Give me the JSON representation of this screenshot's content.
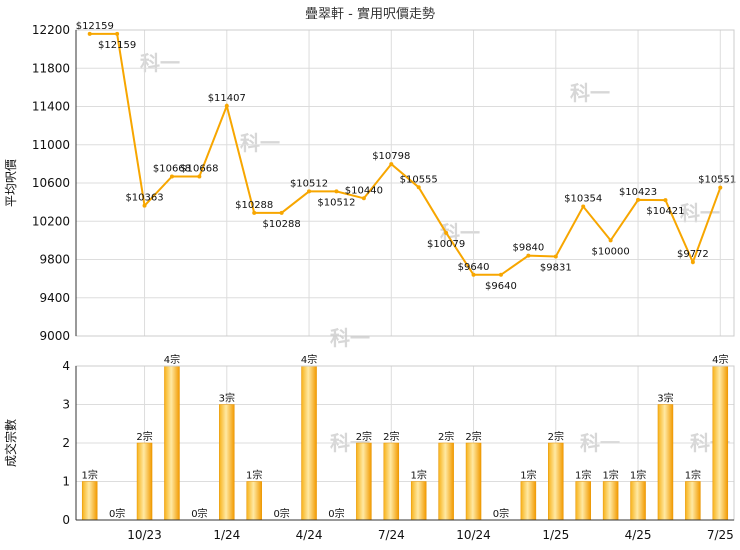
{
  "chart_data": [
    {
      "type": "line",
      "title": "疊翠軒 - 實用呎價走勢",
      "ylabel": "平均呎價",
      "ylim": [
        9000,
        12200
      ],
      "yticks": [
        9000,
        9400,
        9800,
        10200,
        10600,
        11000,
        11400,
        11800,
        12200
      ],
      "point_label_prefix": "$",
      "color": "#f7a600",
      "values": [
        12159,
        12159,
        10363,
        10668,
        10668,
        11407,
        10288,
        10288,
        10512,
        10512,
        10440,
        10798,
        10555,
        10079,
        9640,
        9640,
        9840,
        9831,
        10354,
        10000,
        10423,
        10421,
        9772,
        10551
      ]
    },
    {
      "type": "bar",
      "ylabel": "成交宗數",
      "ylim": [
        0,
        4
      ],
      "yticks": [
        0,
        1,
        2,
        3,
        4
      ],
      "unit": "宗",
      "values": [
        1,
        0,
        2,
        4,
        0,
        3,
        1,
        0,
        4,
        0,
        2,
        2,
        1,
        2,
        2,
        0,
        1,
        2,
        1,
        1,
        1,
        3,
        1,
        4
      ],
      "x_tick_labels": [
        {
          "index": 2.5,
          "label": "10/23"
        },
        {
          "index": 5.5,
          "label": "1/24"
        },
        {
          "index": 8.5,
          "label": "4/24"
        },
        {
          "index": 11.5,
          "label": "7/24"
        },
        {
          "index": 14.5,
          "label": "10/24"
        },
        {
          "index": 17.5,
          "label": "1/25"
        },
        {
          "index": 20.5,
          "label": "4/25"
        },
        {
          "index": 23.5,
          "label": "7/25"
        }
      ]
    }
  ],
  "watermark": "科一"
}
